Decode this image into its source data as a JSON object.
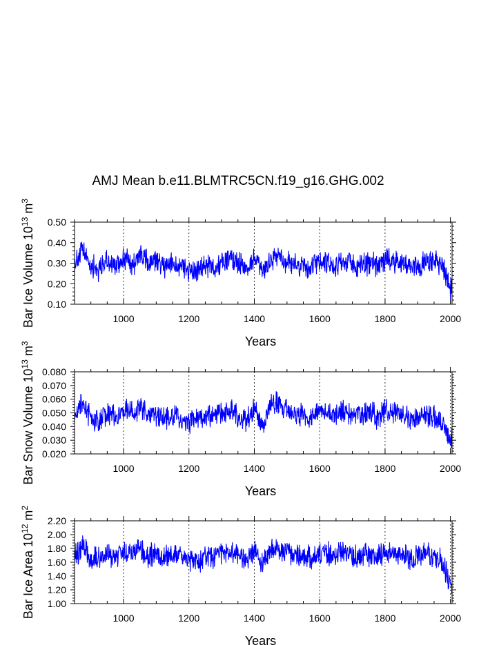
{
  "title": "AMJ Mean b.e11.BLMTRC5CN.f19_g16.GHG.002",
  "colors": {
    "series": "#0000ff",
    "frame": "#000000",
    "grid": "#000000"
  },
  "chart_data": [
    {
      "type": "line",
      "title": "AMJ Mean b.e11.BLMTRC5CN.f19_g16.GHG.002",
      "xlabel": "Years",
      "ylabel": "Bar Ice Volume 10",
      "ylabel_exp": "13",
      "ylabel_unit": " m",
      "ylabel_unit_exp": "3",
      "xlim": [
        850,
        2005
      ],
      "ylim": [
        0.1,
        0.5
      ],
      "yticks": [
        "0.10",
        "0.20",
        "0.30",
        "0.40",
        "0.50"
      ],
      "xticks": [
        "1000",
        "1200",
        "1400",
        "1600",
        "1800",
        "2000"
      ],
      "series": [
        {
          "name": "Bar Ice Volume",
          "x": [
            850,
            875,
            900,
            925,
            950,
            975,
            1000,
            1025,
            1050,
            1075,
            1100,
            1125,
            1150,
            1175,
            1200,
            1225,
            1250,
            1275,
            1300,
            1325,
            1350,
            1375,
            1400,
            1425,
            1450,
            1475,
            1500,
            1525,
            1550,
            1575,
            1600,
            1625,
            1650,
            1675,
            1700,
            1725,
            1750,
            1775,
            1800,
            1825,
            1850,
            1875,
            1900,
            1925,
            1950,
            1975,
            2000
          ],
          "values": [
            0.3,
            0.36,
            0.29,
            0.27,
            0.31,
            0.28,
            0.33,
            0.29,
            0.34,
            0.3,
            0.31,
            0.28,
            0.3,
            0.29,
            0.27,
            0.25,
            0.29,
            0.28,
            0.3,
            0.33,
            0.31,
            0.27,
            0.32,
            0.25,
            0.32,
            0.34,
            0.3,
            0.29,
            0.28,
            0.27,
            0.31,
            0.3,
            0.29,
            0.31,
            0.29,
            0.28,
            0.3,
            0.29,
            0.32,
            0.31,
            0.3,
            0.27,
            0.29,
            0.31,
            0.3,
            0.29,
            0.18
          ]
        }
      ]
    },
    {
      "type": "line",
      "title": "",
      "xlabel": "Years",
      "ylabel": "Bar Snow Volume 10",
      "ylabel_exp": "13",
      "ylabel_unit": " m",
      "ylabel_unit_exp": "3",
      "xlim": [
        850,
        2005
      ],
      "ylim": [
        0.02,
        0.08
      ],
      "yticks": [
        "0.020",
        "0.030",
        "0.040",
        "0.050",
        "0.060",
        "0.070",
        "0.080"
      ],
      "xticks": [
        "1000",
        "1200",
        "1400",
        "1600",
        "1800",
        "2000"
      ],
      "series": [
        {
          "name": "Bar Snow Volume",
          "x": [
            850,
            875,
            900,
            925,
            950,
            975,
            1000,
            1025,
            1050,
            1075,
            1100,
            1125,
            1150,
            1175,
            1200,
            1225,
            1250,
            1275,
            1300,
            1325,
            1350,
            1375,
            1400,
            1425,
            1450,
            1475,
            1500,
            1525,
            1550,
            1575,
            1600,
            1625,
            1650,
            1675,
            1700,
            1725,
            1750,
            1775,
            1800,
            1825,
            1850,
            1875,
            1900,
            1925,
            1950,
            1975,
            2000
          ],
          "values": [
            0.05,
            0.058,
            0.046,
            0.044,
            0.05,
            0.046,
            0.052,
            0.049,
            0.054,
            0.048,
            0.05,
            0.045,
            0.047,
            0.046,
            0.043,
            0.044,
            0.049,
            0.047,
            0.05,
            0.052,
            0.048,
            0.045,
            0.053,
            0.04,
            0.056,
            0.058,
            0.052,
            0.049,
            0.048,
            0.047,
            0.052,
            0.051,
            0.05,
            0.052,
            0.049,
            0.048,
            0.051,
            0.047,
            0.052,
            0.05,
            0.049,
            0.046,
            0.047,
            0.049,
            0.046,
            0.043,
            0.03
          ]
        }
      ]
    },
    {
      "type": "line",
      "title": "",
      "xlabel": "Years",
      "ylabel": "Bar Ice Area 10",
      "ylabel_exp": "12",
      "ylabel_unit": " m",
      "ylabel_unit_exp": "2",
      "xlim": [
        850,
        2005
      ],
      "ylim": [
        1.0,
        2.2
      ],
      "yticks": [
        "1.00",
        "1.20",
        "1.40",
        "1.60",
        "1.80",
        "2.00",
        "2.20"
      ],
      "xticks": [
        "1000",
        "1200",
        "1400",
        "1600",
        "1800",
        "2000"
      ],
      "series": [
        {
          "name": "Bar Ice Area",
          "x": [
            850,
            875,
            900,
            925,
            950,
            975,
            1000,
            1025,
            1050,
            1075,
            1100,
            1125,
            1150,
            1175,
            1200,
            1225,
            1250,
            1275,
            1300,
            1325,
            1350,
            1375,
            1400,
            1425,
            1450,
            1475,
            1500,
            1525,
            1550,
            1575,
            1600,
            1625,
            1650,
            1675,
            1700,
            1725,
            1750,
            1775,
            1800,
            1825,
            1850,
            1875,
            1900,
            1925,
            1950,
            1975,
            2000
          ],
          "values": [
            1.7,
            1.8,
            1.66,
            1.64,
            1.72,
            1.66,
            1.76,
            1.7,
            1.78,
            1.7,
            1.72,
            1.66,
            1.7,
            1.68,
            1.62,
            1.6,
            1.7,
            1.68,
            1.72,
            1.76,
            1.72,
            1.64,
            1.78,
            1.56,
            1.78,
            1.8,
            1.74,
            1.7,
            1.68,
            1.66,
            1.74,
            1.72,
            1.7,
            1.74,
            1.7,
            1.68,
            1.72,
            1.68,
            1.74,
            1.72,
            1.7,
            1.64,
            1.68,
            1.72,
            1.68,
            1.62,
            1.3
          ]
        }
      ]
    }
  ]
}
